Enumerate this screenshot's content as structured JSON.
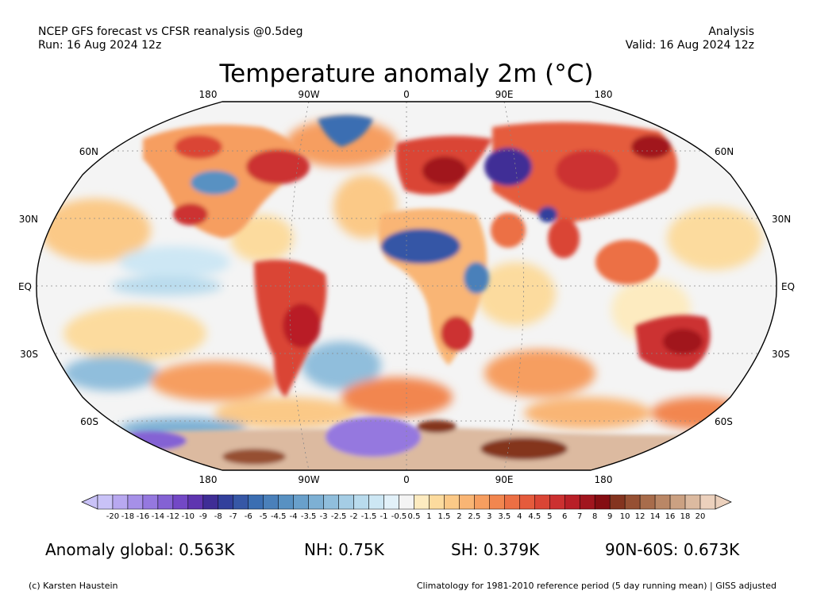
{
  "header": {
    "line1_left": "NCEP GFS forecast vs CFSR reanalysis @0.5deg",
    "line2_left": "Run: 16 Aug 2024 12z",
    "line1_right": "Analysis",
    "line2_right": "Valid: 16 Aug 2024 12z"
  },
  "title": "Temperature anomaly 2m (°C)",
  "map": {
    "projection": "Robinson",
    "lon_labels_top": [
      "180",
      "90W",
      "0",
      "90E",
      "180"
    ],
    "lon_labels_bottom": [
      "180",
      "90W",
      "0",
      "90E",
      "180"
    ],
    "lat_labels_left": [
      "60N",
      "30N",
      "EQ",
      "30S",
      "60S"
    ],
    "lat_labels_right": [
      "60N",
      "30N",
      "EQ",
      "30S",
      "60S"
    ]
  },
  "colorbar": {
    "labels": [
      "-20",
      "-18",
      "-16",
      "-14",
      "-12",
      "-10",
      "-9",
      "-8",
      "-7",
      "-6",
      "-5",
      "-4.5",
      "-4",
      "-3.5",
      "-3",
      "-2.5",
      "-2",
      "-1.5",
      "-1",
      "-0.5",
      "0.5",
      "1",
      "1.5",
      "2",
      "2.5",
      "3",
      "3.5",
      "4",
      "4.5",
      "5",
      "6",
      "7",
      "8",
      "9",
      "10",
      "12",
      "14",
      "16",
      "18",
      "20"
    ],
    "colors": [
      "#c9c2f7",
      "#b8a8f0",
      "#a690e8",
      "#9578df",
      "#8462d4",
      "#7348c6",
      "#5f35b0",
      "#3f2d96",
      "#32409c",
      "#3657a6",
      "#3b6eb2",
      "#4a80ba",
      "#5891c2",
      "#69a0cb",
      "#7db0d4",
      "#90bedc",
      "#a5cde5",
      "#b9dbed",
      "#cde7f4",
      "#e2f1f9",
      "#f4f4f4",
      "#fdebc0",
      "#fcdb9e",
      "#fbc987",
      "#f9b574",
      "#f69e60",
      "#f2864f",
      "#ec6f44",
      "#e55b3c",
      "#da4535",
      "#cc3030",
      "#b91f27",
      "#a1151e",
      "#850d12",
      "#84341f",
      "#965033",
      "#a86c4b",
      "#ba8766",
      "#cba182",
      "#dcbaa0",
      "#ecd1bd"
    ]
  },
  "stats": {
    "global": "Anomaly global: 0.563K",
    "nh": "NH: 0.75K",
    "sh": "SH: 0.379K",
    "arctic": "90N-60S: 0.673K"
  },
  "footer": {
    "left": "(c) Karsten Haustein",
    "right": "Climatology for 1981-2010 reference period (5 day running mean) | GISS adjusted"
  }
}
